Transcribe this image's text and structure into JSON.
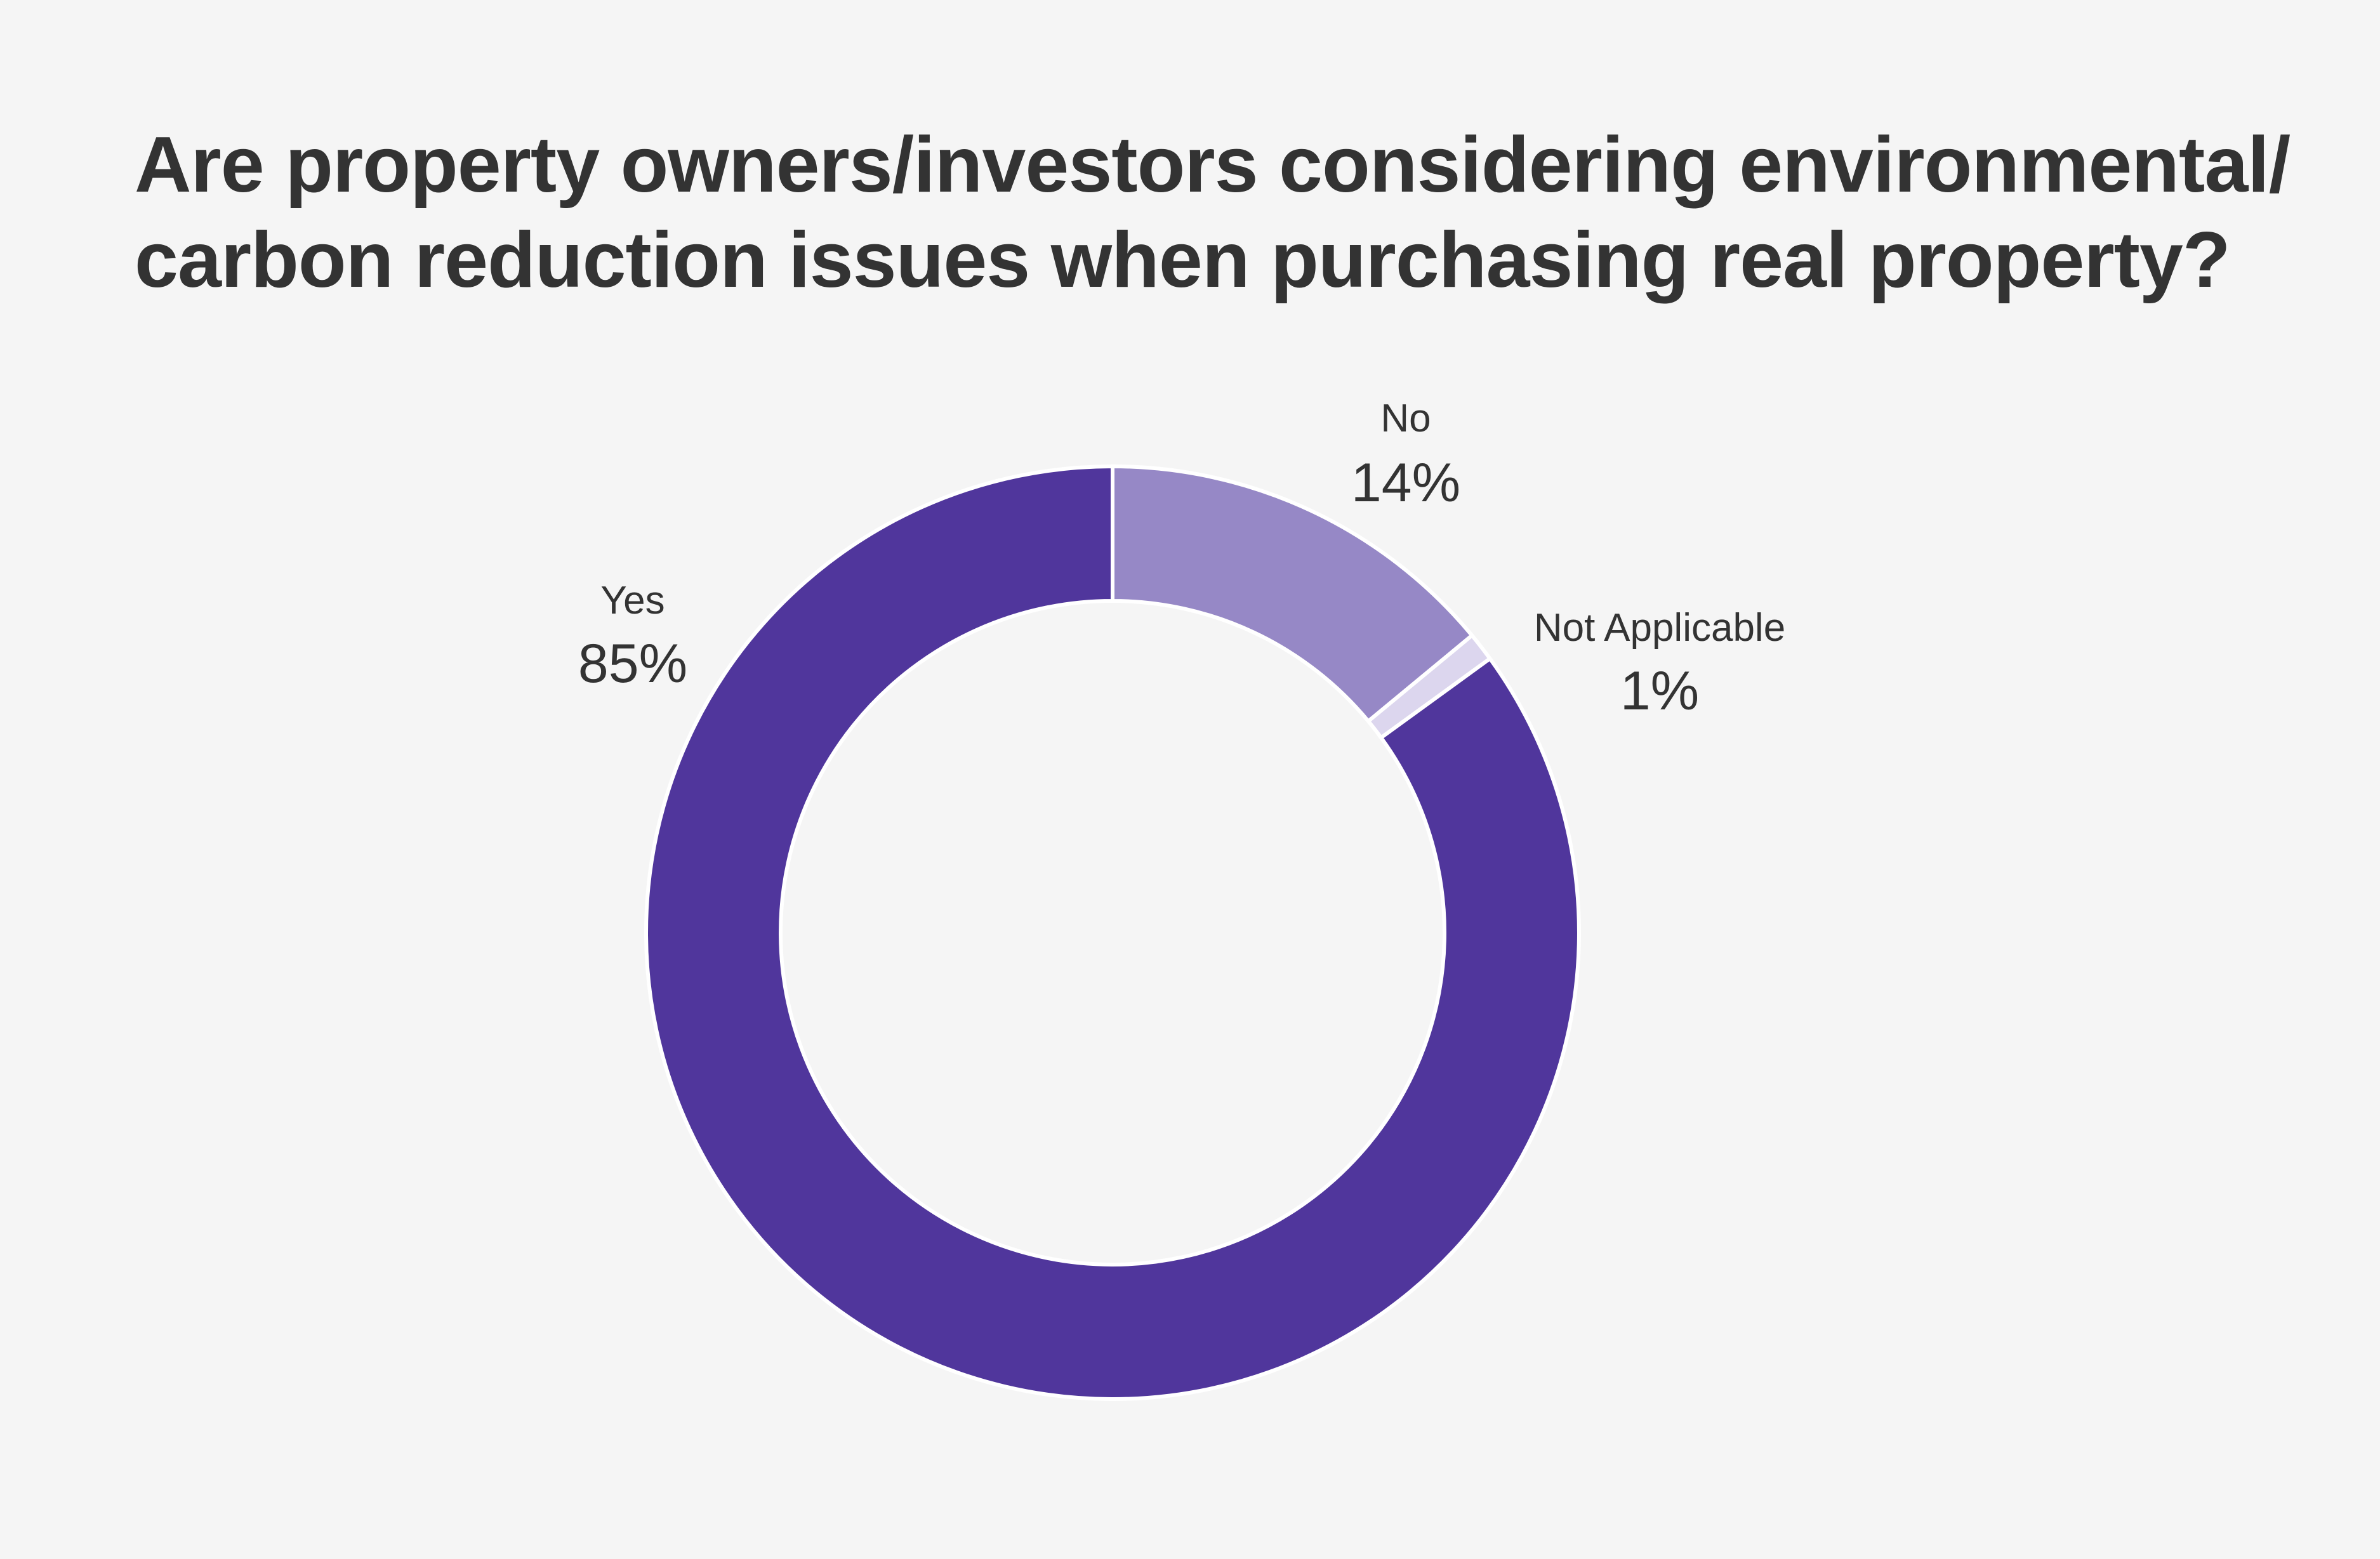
{
  "chart_data": {
    "type": "pie",
    "variant": "donut",
    "title": "Are property owners/investors considering environmental/ carbon reduction issues when purchasing real property?",
    "categories": [
      "No",
      "Not Applicable",
      "Yes"
    ],
    "values": [
      14,
      1,
      85
    ],
    "value_labels": [
      "14%",
      "1%",
      "85%"
    ],
    "colors": [
      "#9688c6",
      "#dcd6ee",
      "#50369c"
    ],
    "start_angle_deg": 0,
    "direction": "clockwise",
    "legend": "none"
  }
}
